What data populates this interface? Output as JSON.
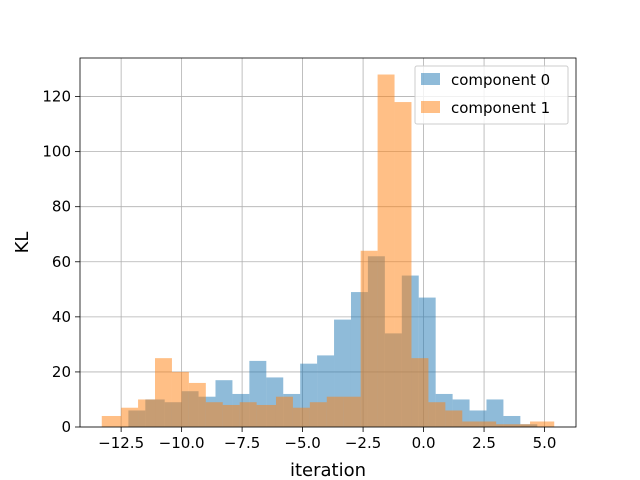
{
  "chart_data": {
    "type": "bar",
    "subtype": "overlapping-histogram",
    "xlabel": "iteration",
    "ylabel": "KL",
    "xlim": [
      -14.2,
      6.3
    ],
    "ylim": [
      0,
      134
    ],
    "xticks": [
      -12.5,
      -10.0,
      -7.5,
      -5.0,
      -2.5,
      0.0,
      2.5,
      5.0
    ],
    "xtick_labels": [
      "−12.5",
      "−10.0",
      "−7.5",
      "−5.0",
      "−2.5",
      "0.0",
      "2.5",
      "5.0"
    ],
    "yticks": [
      0,
      20,
      40,
      60,
      80,
      100,
      120
    ],
    "ytick_labels": [
      "0",
      "20",
      "40",
      "60",
      "80",
      "100",
      "120"
    ],
    "grid": true,
    "legend_position": "top-right",
    "series": [
      {
        "name": "component 0",
        "color": "#1f77b4",
        "opacity": 0.5,
        "bins": [
          {
            "x0": -12.2,
            "x1": -11.5,
            "value": 6
          },
          {
            "x0": -11.5,
            "x1": -10.7,
            "value": 10
          },
          {
            "x0": -10.7,
            "x1": -10.0,
            "value": 9
          },
          {
            "x0": -10.0,
            "x1": -9.3,
            "value": 13
          },
          {
            "x0": -9.3,
            "x1": -8.6,
            "value": 11
          },
          {
            "x0": -8.6,
            "x1": -7.9,
            "value": 17
          },
          {
            "x0": -7.9,
            "x1": -7.2,
            "value": 12
          },
          {
            "x0": -7.2,
            "x1": -6.5,
            "value": 24
          },
          {
            "x0": -6.5,
            "x1": -5.8,
            "value": 18
          },
          {
            "x0": -5.8,
            "x1": -5.1,
            "value": 12
          },
          {
            "x0": -5.1,
            "x1": -4.4,
            "value": 23
          },
          {
            "x0": -4.4,
            "x1": -3.7,
            "value": 26
          },
          {
            "x0": -3.7,
            "x1": -3.0,
            "value": 39
          },
          {
            "x0": -3.0,
            "x1": -2.3,
            "value": 49
          },
          {
            "x0": -2.3,
            "x1": -1.6,
            "value": 62
          },
          {
            "x0": -1.6,
            "x1": -0.9,
            "value": 34
          },
          {
            "x0": -0.9,
            "x1": -0.2,
            "value": 55
          },
          {
            "x0": -0.2,
            "x1": 0.5,
            "value": 47
          },
          {
            "x0": 0.5,
            "x1": 1.2,
            "value": 12
          },
          {
            "x0": 1.2,
            "x1": 1.9,
            "value": 10
          },
          {
            "x0": 1.9,
            "x1": 2.6,
            "value": 6
          },
          {
            "x0": 2.6,
            "x1": 3.3,
            "value": 10
          },
          {
            "x0": 3.3,
            "x1": 4.0,
            "value": 4
          },
          {
            "x0": 4.0,
            "x1": 4.7,
            "value": 1
          }
        ]
      },
      {
        "name": "component 1",
        "color": "#ff7f0e",
        "opacity": 0.5,
        "bins": [
          {
            "x0": -13.3,
            "x1": -12.5,
            "value": 4
          },
          {
            "x0": -12.5,
            "x1": -11.8,
            "value": 7
          },
          {
            "x0": -11.8,
            "x1": -11.1,
            "value": 10
          },
          {
            "x0": -11.1,
            "x1": -10.4,
            "value": 25
          },
          {
            "x0": -10.4,
            "x1": -9.7,
            "value": 20
          },
          {
            "x0": -9.7,
            "x1": -9.0,
            "value": 16
          },
          {
            "x0": -9.0,
            "x1": -8.3,
            "value": 9
          },
          {
            "x0": -8.3,
            "x1": -7.6,
            "value": 8
          },
          {
            "x0": -7.6,
            "x1": -6.9,
            "value": 9
          },
          {
            "x0": -6.9,
            "x1": -6.1,
            "value": 8
          },
          {
            "x0": -6.1,
            "x1": -5.4,
            "value": 11
          },
          {
            "x0": -5.4,
            "x1": -4.7,
            "value": 7
          },
          {
            "x0": -4.7,
            "x1": -4.0,
            "value": 9
          },
          {
            "x0": -4.0,
            "x1": -3.3,
            "value": 11
          },
          {
            "x0": -3.3,
            "x1": -2.6,
            "value": 11
          },
          {
            "x0": -2.6,
            "x1": -1.9,
            "value": 64
          },
          {
            "x0": -1.9,
            "x1": -1.2,
            "value": 128
          },
          {
            "x0": -1.2,
            "x1": -0.5,
            "value": 118
          },
          {
            "x0": -0.5,
            "x1": 0.2,
            "value": 25
          },
          {
            "x0": 0.2,
            "x1": 0.9,
            "value": 9
          },
          {
            "x0": 0.9,
            "x1": 1.6,
            "value": 6
          },
          {
            "x0": 1.6,
            "x1": 2.3,
            "value": 2
          },
          {
            "x0": 2.3,
            "x1": 3.0,
            "value": 2
          },
          {
            "x0": 3.0,
            "x1": 3.7,
            "value": 1
          },
          {
            "x0": 3.7,
            "x1": 4.4,
            "value": 1
          },
          {
            "x0": 4.4,
            "x1": 5.1,
            "value": 2
          },
          {
            "x0": 5.1,
            "x1": 5.4,
            "value": 2
          }
        ]
      }
    ]
  }
}
